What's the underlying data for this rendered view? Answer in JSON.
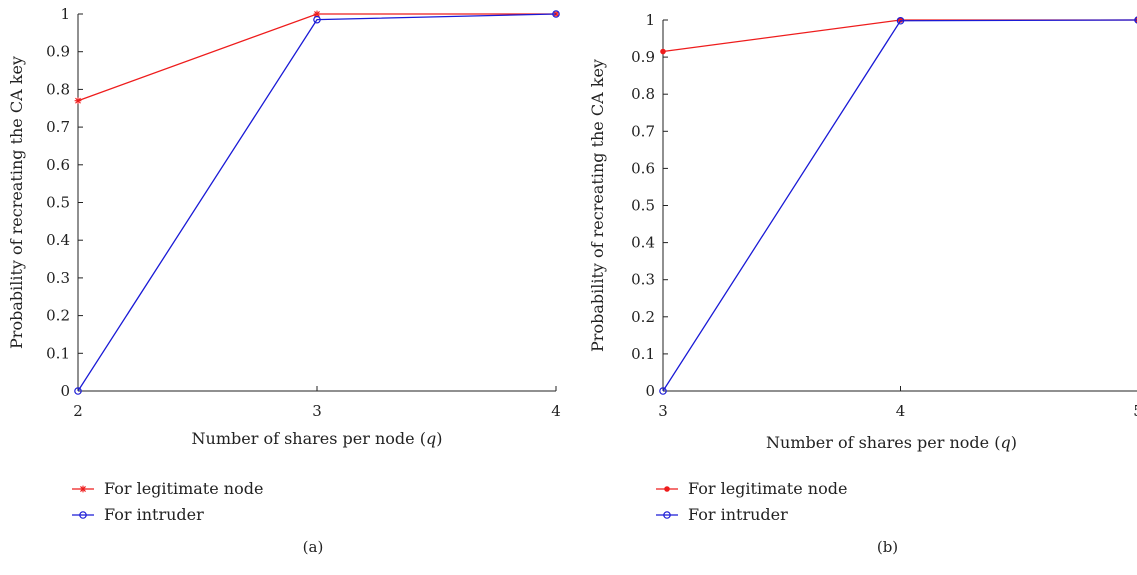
{
  "chart_data": [
    {
      "type": "line",
      "caption": "(a)",
      "x": [
        2,
        3,
        4
      ],
      "xticks": [
        2,
        3,
        4
      ],
      "xlim": [
        2,
        4
      ],
      "ylim": [
        0,
        1
      ],
      "yticks": [
        0,
        0.1,
        0.2,
        0.3,
        0.4,
        0.5,
        0.6,
        0.7,
        0.8,
        0.9,
        1
      ],
      "ytick_labels": [
        "0",
        "0.1",
        "0.2",
        "0.3",
        "0.4",
        "0.5",
        "0.6",
        "0.7",
        "0.8",
        "0.9",
        "1"
      ],
      "xlabel": "Number of shares per node (q)",
      "ylabel": "Probability of recreating the CA key",
      "legend_position": "bottom-left",
      "series": [
        {
          "name": "For legitimate node",
          "values": [
            0.77,
            1.0,
            1.0
          ],
          "color": "#ee1c1c",
          "marker": "asterisk"
        },
        {
          "name": "For intruder",
          "values": [
            0.0,
            0.985,
            1.0
          ],
          "color": "#1a1ad6",
          "marker": "circle"
        }
      ]
    },
    {
      "type": "line",
      "caption": "(b)",
      "x": [
        3,
        4,
        5
      ],
      "xticks": [
        3,
        4,
        5
      ],
      "xlim": [
        3,
        5
      ],
      "ylim": [
        0,
        1
      ],
      "yticks": [
        0,
        0.1,
        0.2,
        0.3,
        0.4,
        0.5,
        0.6,
        0.7,
        0.8,
        0.9,
        1
      ],
      "ytick_labels": [
        "0",
        "0.1",
        "0.2",
        "0.3",
        "0.4",
        "0.5",
        "0.6",
        "0.7",
        "0.8",
        "0.9",
        "1"
      ],
      "xlabel": "Number of shares per node (q)",
      "ylabel": "Probability of recreating the CA key",
      "legend_position": "bottom-left",
      "series": [
        {
          "name": "For legitimate node",
          "values": [
            0.915,
            1.0,
            1.0
          ],
          "color": "#ee1c1c",
          "marker": "dot"
        },
        {
          "name": "For intruder",
          "values": [
            0.0,
            0.998,
            1.0
          ],
          "color": "#1a1ad6",
          "marker": "circle"
        }
      ]
    }
  ]
}
